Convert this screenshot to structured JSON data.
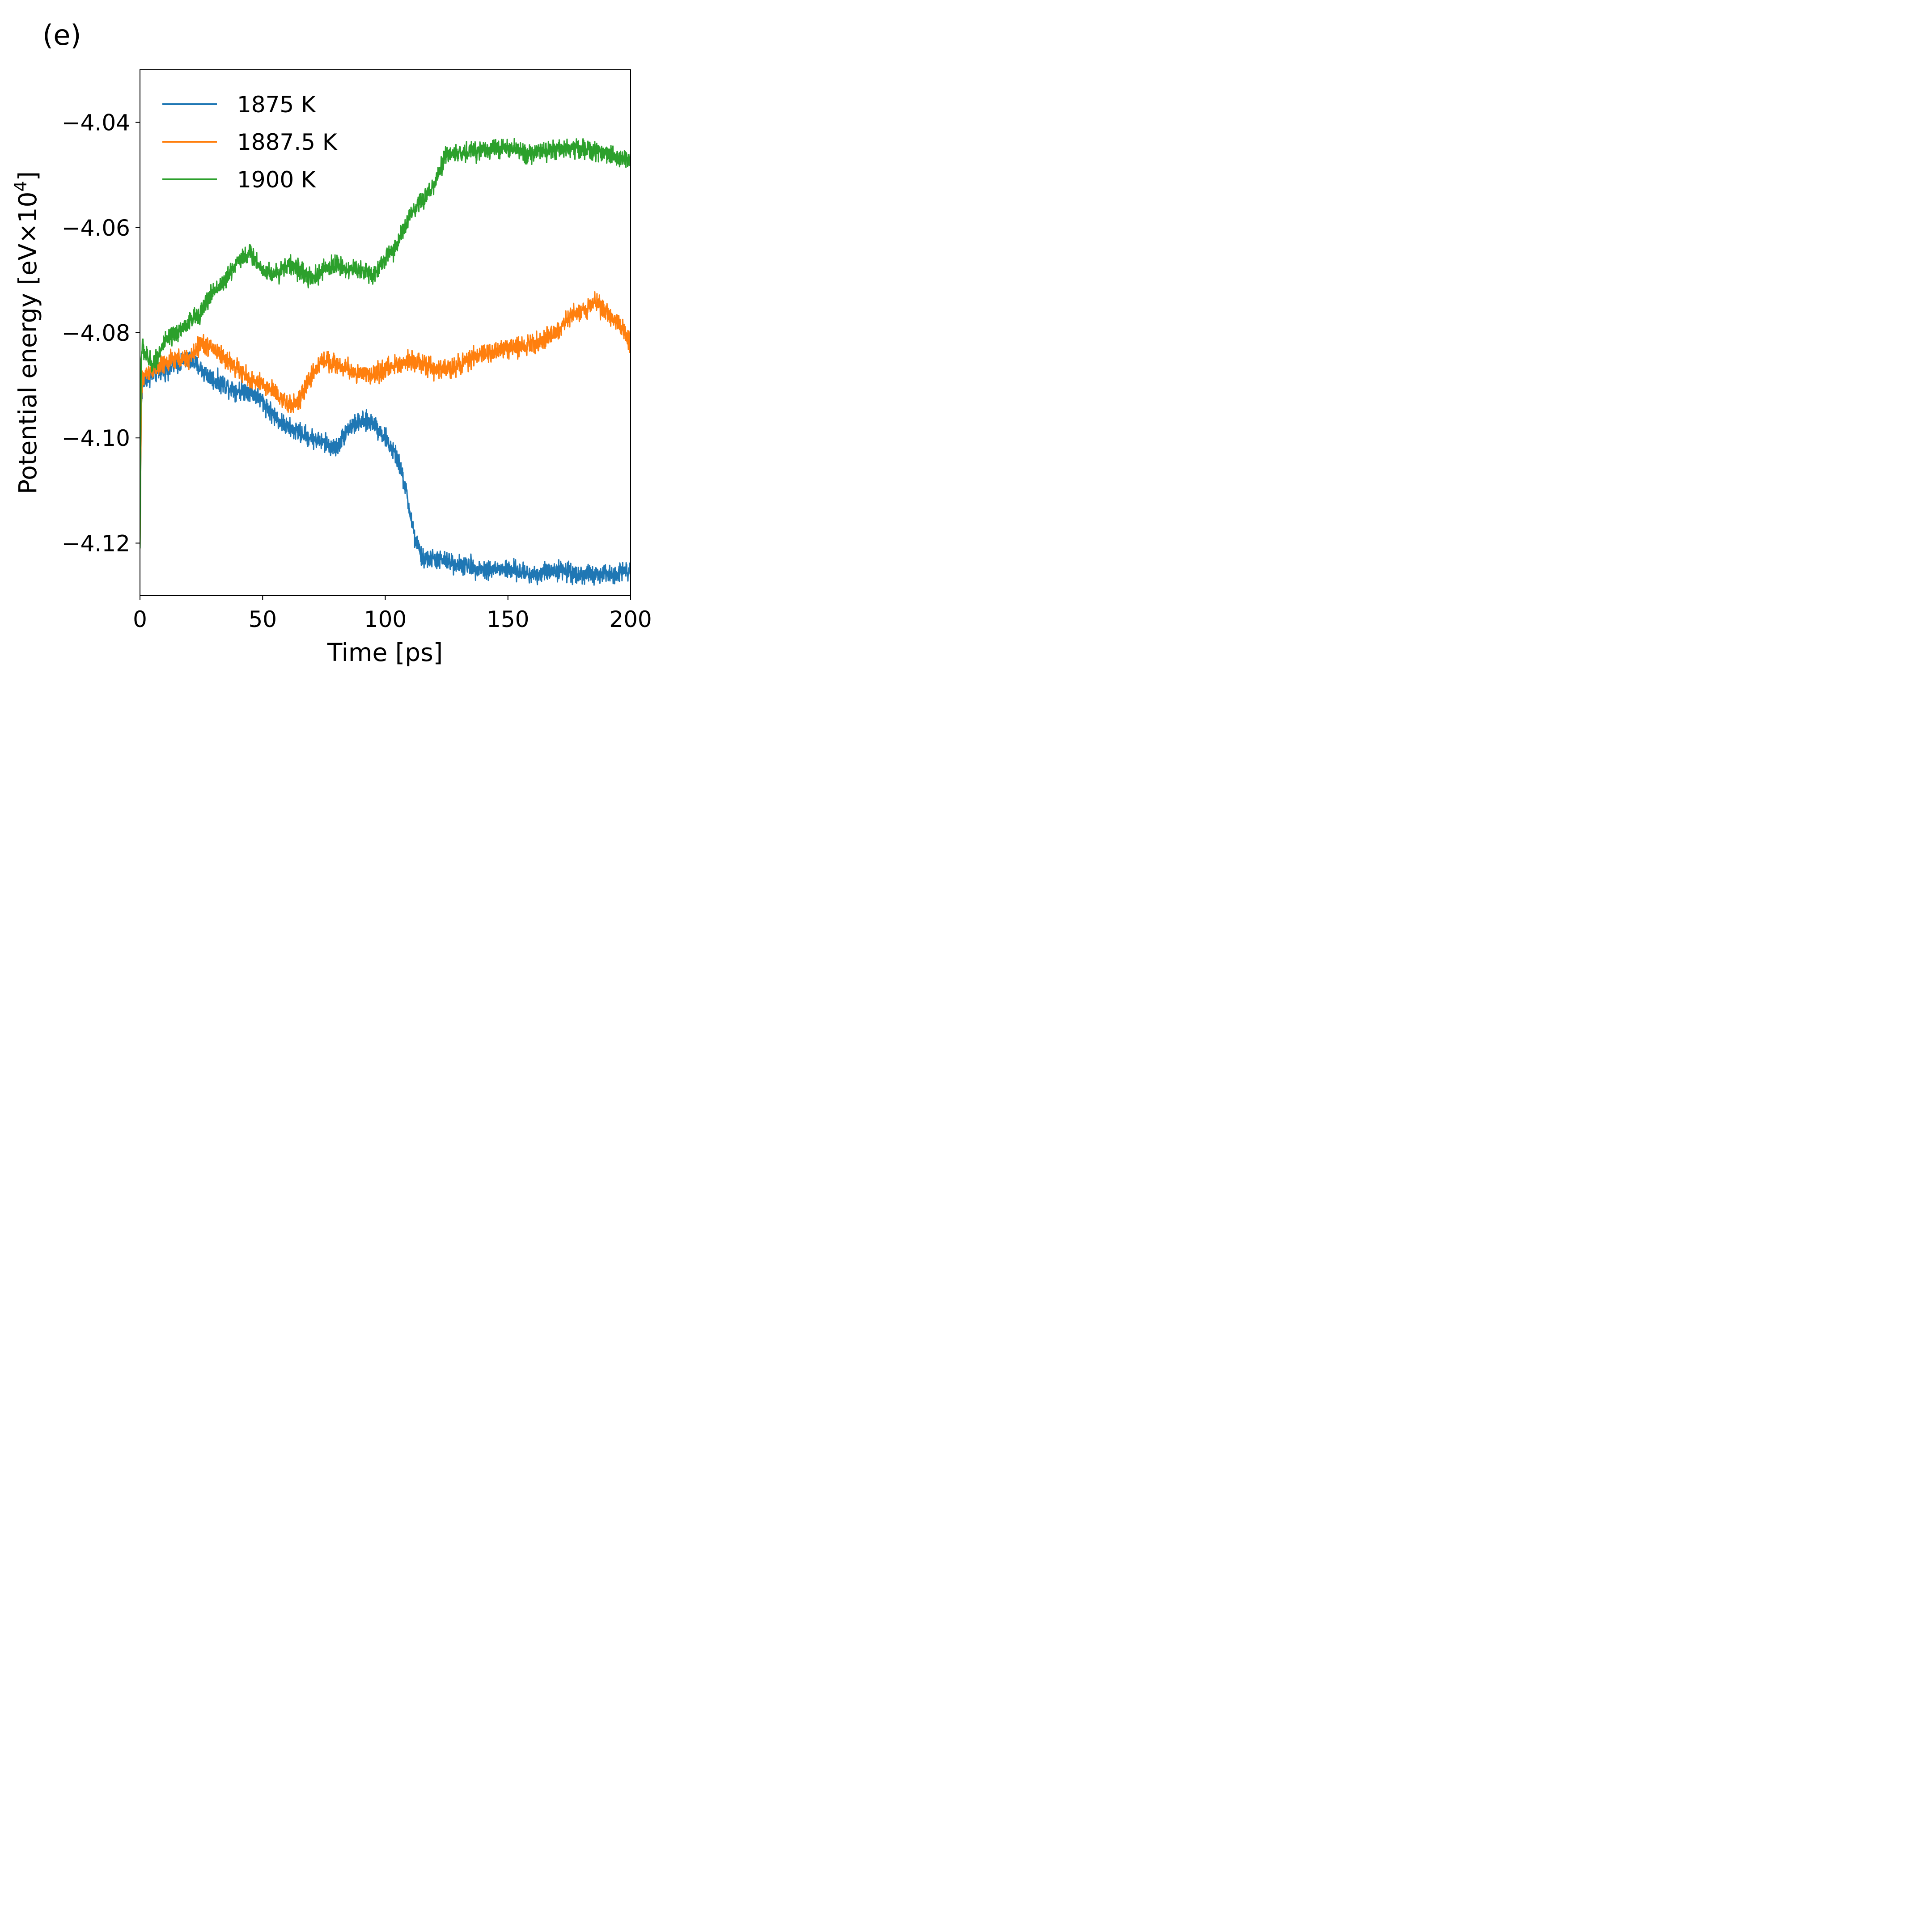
{
  "panel_label": "(e)",
  "chart_data": {
    "type": "line",
    "title": "",
    "xlabel": "Time [ps]",
    "ylabel_main": "Potential energy [eV×10",
    "ylabel_sup": "4",
    "ylabel_close": "]",
    "xlim": [
      0,
      200
    ],
    "ylim": [
      -4.13,
      -4.03
    ],
    "xticks": [
      0,
      50,
      100,
      150,
      200
    ],
    "xtick_labels": [
      "0",
      "50",
      "100",
      "150",
      "200"
    ],
    "yticks": [
      -4.04,
      -4.06,
      -4.08,
      -4.1,
      -4.12
    ],
    "ytick_labels": [
      "−4.04",
      "−4.06",
      "−4.08",
      "−4.10",
      "−4.12"
    ],
    "legend_position": "top-left",
    "grid": false,
    "series": [
      {
        "name": "1875 K",
        "color": "#1f77b4",
        "noise": 0.0018,
        "x": [
          0,
          0.5,
          1,
          2,
          5,
          10,
          15,
          20,
          25,
          30,
          35,
          40,
          45,
          50,
          55,
          60,
          65,
          70,
          75,
          80,
          85,
          90,
          95,
          100,
          105,
          108,
          110,
          112,
          115,
          120,
          130,
          140,
          150,
          160,
          170,
          180,
          190,
          200
        ],
        "y": [
          -4.121,
          -4.095,
          -4.09,
          -4.089,
          -4.088,
          -4.087,
          -4.086,
          -4.085,
          -4.087,
          -4.089,
          -4.09,
          -4.091,
          -4.091,
          -4.093,
          -4.096,
          -4.098,
          -4.099,
          -4.1,
          -4.101,
          -4.102,
          -4.098,
          -4.097,
          -4.097,
          -4.1,
          -4.104,
          -4.109,
          -4.114,
          -4.119,
          -4.123,
          -4.123,
          -4.124,
          -4.125,
          -4.125,
          -4.126,
          -4.125,
          -4.126,
          -4.126,
          -4.125
        ]
      },
      {
        "name": "1887.5 K",
        "color": "#ff7f0e",
        "noise": 0.0018,
        "x": [
          0,
          0.5,
          1,
          2,
          5,
          10,
          15,
          20,
          25,
          30,
          35,
          40,
          45,
          50,
          55,
          60,
          65,
          70,
          75,
          80,
          85,
          90,
          95,
          100,
          105,
          110,
          115,
          120,
          125,
          130,
          140,
          150,
          160,
          170,
          175,
          180,
          185,
          190,
          195,
          200
        ],
        "y": [
          -4.121,
          -4.095,
          -4.089,
          -4.088,
          -4.087,
          -4.086,
          -4.085,
          -4.085,
          -4.082,
          -4.083,
          -4.085,
          -4.087,
          -4.089,
          -4.09,
          -4.091,
          -4.094,
          -4.093,
          -4.088,
          -4.085,
          -4.086,
          -4.087,
          -4.088,
          -4.088,
          -4.087,
          -4.086,
          -4.085,
          -4.086,
          -4.087,
          -4.087,
          -4.086,
          -4.084,
          -4.083,
          -4.082,
          -4.08,
          -4.077,
          -4.076,
          -4.074,
          -4.076,
          -4.078,
          -4.082
        ]
      },
      {
        "name": "1900 K",
        "color": "#2ca02c",
        "noise": 0.0018,
        "x": [
          0,
          0.5,
          1,
          2,
          5,
          10,
          15,
          20,
          25,
          30,
          35,
          40,
          45,
          50,
          55,
          60,
          65,
          70,
          75,
          80,
          85,
          90,
          95,
          100,
          105,
          110,
          115,
          120,
          125,
          130,
          140,
          150,
          160,
          170,
          180,
          190,
          200
        ],
        "y": [
          -4.121,
          -4.085,
          -4.082,
          -4.084,
          -4.086,
          -4.082,
          -4.08,
          -4.078,
          -4.076,
          -4.072,
          -4.07,
          -4.066,
          -4.065,
          -4.068,
          -4.069,
          -4.067,
          -4.068,
          -4.07,
          -4.068,
          -4.067,
          -4.068,
          -4.068,
          -4.069,
          -4.066,
          -4.063,
          -4.058,
          -4.055,
          -4.052,
          -4.046,
          -4.046,
          -4.045,
          -4.045,
          -4.046,
          -4.045,
          -4.045,
          -4.046,
          -4.047
        ]
      }
    ]
  }
}
